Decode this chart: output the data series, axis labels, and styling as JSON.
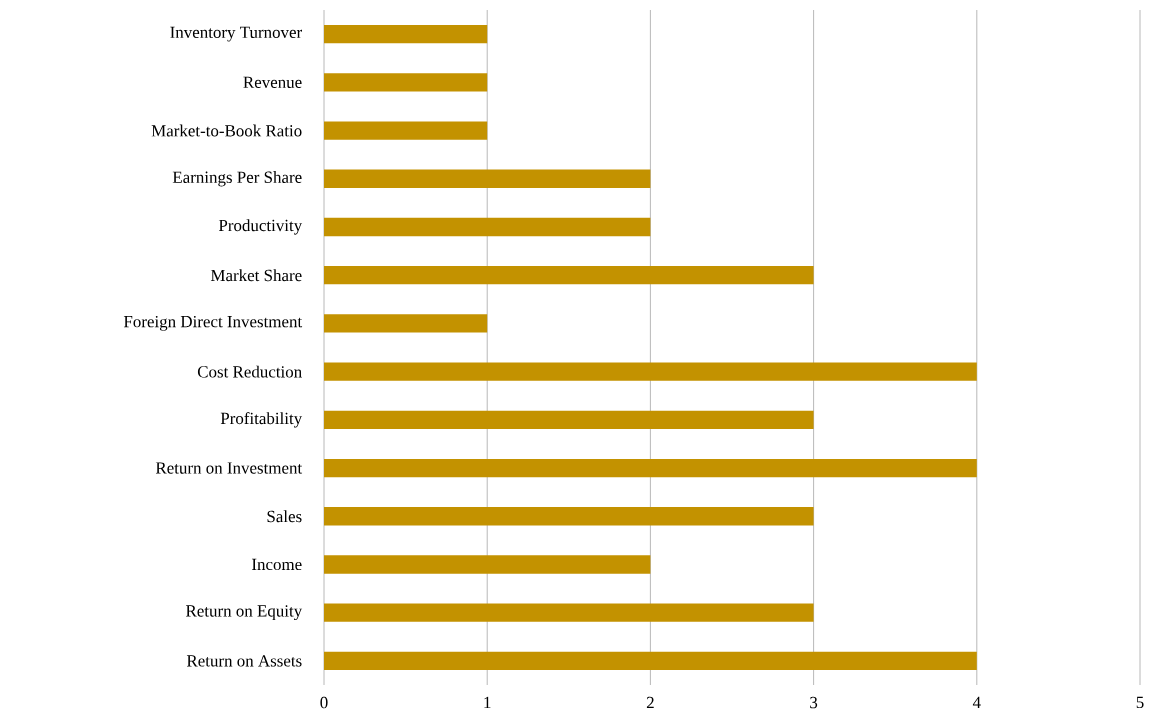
{
  "chart_data": {
    "type": "bar",
    "orientation": "horizontal",
    "categories": [
      "Inventory Turnover",
      "Revenue",
      "Market-to-Book Ratio",
      "Earnings Per Share",
      "Productivity",
      "Market Share",
      "Foreign Direct Investment",
      "Cost Reduction",
      "Profitability",
      "Return on Investment",
      "Sales",
      "Income",
      "Return on Equity",
      "Return on Assets"
    ],
    "values": [
      1,
      1,
      1,
      2,
      2,
      3,
      1,
      4,
      3,
      4,
      3,
      2,
      3,
      4
    ],
    "color": "#c39200",
    "xlim": [
      0,
      5
    ],
    "xticks": [
      0,
      1,
      2,
      3,
      4,
      5
    ],
    "grid": "x"
  }
}
